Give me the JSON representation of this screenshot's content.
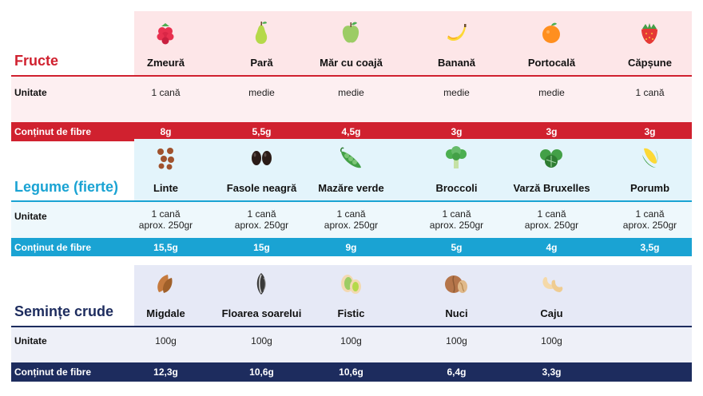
{
  "sections": [
    {
      "title": "Fructe",
      "unit_label": "Unitate",
      "fiber_label": "Conținut de fibre",
      "colors": {
        "accent": "#d0212f",
        "bg_top": "#fde6e8",
        "bg_mid": "#fdeff1",
        "title": "#d0212f"
      },
      "items": [
        {
          "name": "Zmeură",
          "unit1": "1 cană",
          "unit2": "",
          "fiber": "8g",
          "icon": "raspberry-icon"
        },
        {
          "name": "Pară",
          "unit1": "medie",
          "unit2": "",
          "fiber": "5,5g",
          "icon": "pear-icon"
        },
        {
          "name": "Măr cu coajă",
          "unit1": "medie",
          "unit2": "",
          "fiber": "4,5g",
          "icon": "apple-icon"
        },
        {
          "name": "Banană",
          "unit1": "medie",
          "unit2": "",
          "fiber": "3g",
          "icon": "banana-icon"
        },
        {
          "name": "Portocală",
          "unit1": "medie",
          "unit2": "",
          "fiber": "3g",
          "icon": "orange-icon"
        },
        {
          "name": "Căpșune",
          "unit1": "1 cană",
          "unit2": "",
          "fiber": "3g",
          "icon": "strawberry-icon"
        }
      ]
    },
    {
      "title": "Legume (fierte)",
      "unit_label": "Unitate",
      "fiber_label": "Conținut de fibre",
      "colors": {
        "accent": "#1aa3d3",
        "bg_top": "#e3f4fb",
        "bg_mid": "#eef8fc",
        "title": "#1aa3d3"
      },
      "items": [
        {
          "name": "Linte",
          "unit1": "1 cană",
          "unit2": "aprox. 250gr",
          "fiber": "15,5g",
          "icon": "lentils-icon"
        },
        {
          "name": "Fasole neagră",
          "unit1": "1 cană",
          "unit2": "aprox. 250gr",
          "fiber": "15g",
          "icon": "black-beans-icon"
        },
        {
          "name": "Mazăre verde",
          "unit1": "1 cană",
          "unit2": "aprox. 250gr",
          "fiber": "9g",
          "icon": "green-peas-icon"
        },
        {
          "name": "Broccoli",
          "unit1": "1 cană",
          "unit2": "aprox. 250gr",
          "fiber": "5g",
          "icon": "broccoli-icon"
        },
        {
          "name": "Varză Bruxelles",
          "unit1": "1 cană",
          "unit2": "aprox. 250gr",
          "fiber": "4g",
          "icon": "brussels-sprouts-icon"
        },
        {
          "name": "Porumb",
          "unit1": "1 cană",
          "unit2": "aprox. 250gr",
          "fiber": "3,5g",
          "icon": "corn-icon"
        }
      ]
    },
    {
      "title": "Semințe crude",
      "unit_label": "Unitate",
      "fiber_label": "Conținut de fibre",
      "colors": {
        "accent": "#1d2c5e",
        "bg_top": "#e6e9f6",
        "bg_mid": "#eef0f8",
        "title": "#1d2c5e"
      },
      "items": [
        {
          "name": "Migdale",
          "unit1": "100g",
          "unit2": "",
          "fiber": "12,3g",
          "icon": "almond-icon"
        },
        {
          "name": "Floarea soarelui",
          "unit1": "100g",
          "unit2": "",
          "fiber": "10,6g",
          "icon": "sunflower-seed-icon"
        },
        {
          "name": "Fistic",
          "unit1": "100g",
          "unit2": "",
          "fiber": "10,6g",
          "icon": "pistachio-icon"
        },
        {
          "name": "Nuci",
          "unit1": "100g",
          "unit2": "",
          "fiber": "6,4g",
          "icon": "walnut-icon"
        },
        {
          "name": "Caju",
          "unit1": "100g",
          "unit2": "",
          "fiber": "3,3g",
          "icon": "cashew-icon"
        }
      ]
    }
  ]
}
